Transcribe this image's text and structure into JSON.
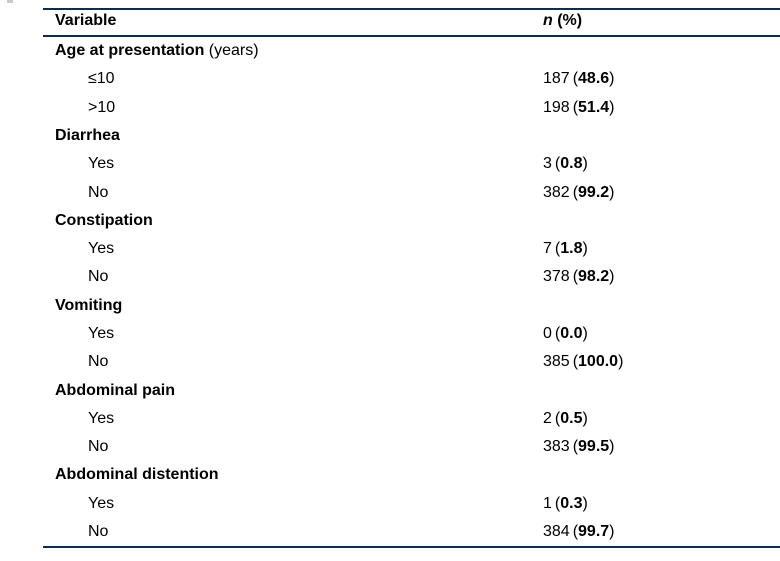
{
  "page": {
    "background": "#ffffff",
    "text_color": "#000000",
    "rule_color": "#0f2d4b"
  },
  "table": {
    "header": {
      "variable_label": "Variable",
      "n_label_italic": "n",
      "n_label_rest": " (%)"
    },
    "value_format": {
      "open": "(",
      "close": ")"
    },
    "rows": [
      {
        "type": "category",
        "label": "Age at presentation",
        "suffix": " (years)",
        "n": "",
        "pct": ""
      },
      {
        "type": "sub",
        "label": "≤10",
        "suffix": "",
        "n": "187",
        "pct": "48.6"
      },
      {
        "type": "sub",
        "label": ">10",
        "suffix": "",
        "n": "198",
        "pct": "51.4"
      },
      {
        "type": "category",
        "label": "Diarrhea",
        "suffix": "",
        "n": "",
        "pct": ""
      },
      {
        "type": "sub",
        "label": "Yes",
        "suffix": "",
        "n": "3",
        "pct": "0.8"
      },
      {
        "type": "sub",
        "label": "No",
        "suffix": "",
        "n": "382",
        "pct": "99.2"
      },
      {
        "type": "category",
        "label": "Constipation",
        "suffix": "",
        "n": "",
        "pct": ""
      },
      {
        "type": "sub",
        "label": "Yes",
        "suffix": "",
        "n": "7",
        "pct": "1.8"
      },
      {
        "type": "sub",
        "label": "No",
        "suffix": "",
        "n": "378",
        "pct": "98.2"
      },
      {
        "type": "category",
        "label": "Vomiting",
        "suffix": "",
        "n": "",
        "pct": ""
      },
      {
        "type": "sub",
        "label": "Yes",
        "suffix": "",
        "n": "0",
        "pct": "0.0"
      },
      {
        "type": "sub",
        "label": "No",
        "suffix": "",
        "n": "385",
        "pct": "100.0"
      },
      {
        "type": "category",
        "label": "Abdominal pain",
        "suffix": "",
        "n": "",
        "pct": ""
      },
      {
        "type": "sub",
        "label": "Yes",
        "suffix": "",
        "n": "2",
        "pct": "0.5"
      },
      {
        "type": "sub",
        "label": "No",
        "suffix": "",
        "n": "383",
        "pct": "99.5"
      },
      {
        "type": "category",
        "label": "Abdominal distention",
        "suffix": "",
        "n": "",
        "pct": ""
      },
      {
        "type": "sub",
        "label": "Yes",
        "suffix": "",
        "n": "1",
        "pct": "0.3"
      },
      {
        "type": "sub",
        "label": "No",
        "suffix": "",
        "n": "384",
        "pct": "99.7"
      }
    ]
  }
}
